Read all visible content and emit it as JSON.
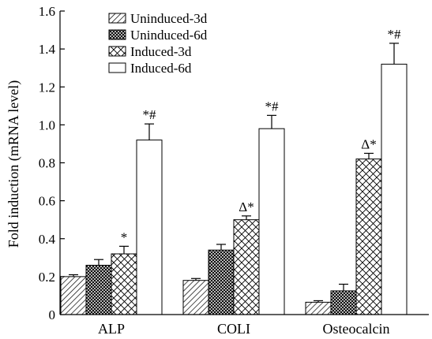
{
  "chart_data": {
    "type": "bar",
    "title": "",
    "xlabel": "",
    "ylabel": "Fold induction (mRNA level)",
    "ylim": [
      0,
      1.6
    ],
    "yticks": [
      "0",
      "0.2",
      "0.4",
      "0.6",
      "0.8",
      "1.0",
      "1.2",
      "1.4",
      "1.6"
    ],
    "categories": [
      "ALP",
      "COLI",
      "Osteocalcin"
    ],
    "legend_position": "top-left",
    "series": [
      {
        "name": "Uninduced-3d",
        "pattern": "diagonal-hatch",
        "values": [
          0.2,
          0.18,
          0.065
        ],
        "errors": [
          0.01,
          0.01,
          0.008
        ],
        "annotations": [
          "",
          "",
          ""
        ]
      },
      {
        "name": "Uninduced-6d",
        "pattern": "dense-crosshatch",
        "values": [
          0.26,
          0.34,
          0.125
        ],
        "errors": [
          0.03,
          0.03,
          0.035
        ],
        "annotations": [
          "",
          "",
          ""
        ]
      },
      {
        "name": "Induced-3d",
        "pattern": "diamond-crosshatch",
        "values": [
          0.32,
          0.5,
          0.82
        ],
        "errors": [
          0.04,
          0.02,
          0.03
        ],
        "annotations": [
          "*",
          "Δ*",
          "Δ*"
        ]
      },
      {
        "name": "Induced-6d",
        "pattern": "open",
        "values": [
          0.92,
          0.98,
          1.32
        ],
        "errors": [
          0.085,
          0.07,
          0.11
        ],
        "annotations": [
          "*#",
          "*#",
          "*#"
        ]
      }
    ]
  }
}
